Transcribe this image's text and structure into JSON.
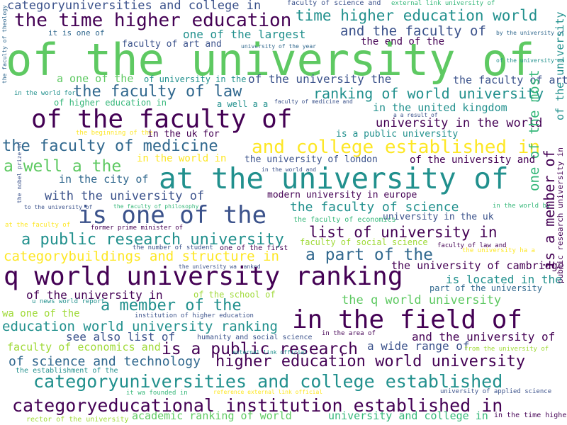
{
  "palette": {
    "dark_purple": "#440154",
    "indigo": "#3b528b",
    "blue": "#31688e",
    "teal": "#21908d",
    "green_teal": "#35b779",
    "green": "#5ec962",
    "yellow_green": "#a0da39",
    "yellow": "#fde725"
  },
  "words": [
    {
      "t": "categoryuniversities and college in",
      "c": "#3b528b"
    },
    {
      "t": "faculty of science and",
      "c": "#3b528b"
    },
    {
      "t": "external link university of",
      "c": "#35b779"
    },
    {
      "t": "the time higher education",
      "c": "#440154"
    },
    {
      "t": "time higher education world",
      "c": "#21908d"
    },
    {
      "t": "it is one of",
      "c": "#31688e"
    },
    {
      "t": "one of the largest",
      "c": "#21908d"
    },
    {
      "t": "and the faculty of",
      "c": "#3b528b"
    },
    {
      "t": "by the university of",
      "c": "#31688e"
    },
    {
      "t": "the faculty of theology",
      "c": "#31688e"
    },
    {
      "t": "faculty of art and",
      "c": "#3b528b"
    },
    {
      "t": "university of the year",
      "c": "#31688e"
    },
    {
      "t": "the end of the",
      "c": "#440154"
    },
    {
      "t": "of the university of",
      "c": "#5ec962"
    },
    {
      "t": "of the university wa",
      "c": "#21908d"
    },
    {
      "t": "a one of the",
      "c": "#5ec962"
    },
    {
      "t": "of university in the",
      "c": "#21908d"
    },
    {
      "t": "of the university the",
      "c": "#3b528b"
    },
    {
      "t": "the faculty of art",
      "c": "#3b528b"
    },
    {
      "t": "the faculty of law",
      "c": "#31688e"
    },
    {
      "t": "ranking of world university",
      "c": "#21908d"
    },
    {
      "t": "in the world for",
      "c": "#21908d"
    },
    {
      "t": "of higher education in",
      "c": "#35b779"
    },
    {
      "t": "a well a a",
      "c": "#21908d"
    },
    {
      "t": "faculty of medicine and",
      "c": "#3b528b"
    },
    {
      "t": "in the united kingdom",
      "c": "#21908d"
    },
    {
      "t": "of the university",
      "c": "#21908d"
    },
    {
      "t": "of the faculty of",
      "c": "#440154"
    },
    {
      "t": "a a result of",
      "c": "#3b528b"
    },
    {
      "t": "university in the world",
      "c": "#440154"
    },
    {
      "t": "the beginning of the",
      "c": "#fde725"
    },
    {
      "t": "in the uk for",
      "c": "#440154"
    },
    {
      "t": "is a public university",
      "c": "#21908d"
    },
    {
      "t": "the faculty of medicine",
      "c": "#31688e"
    },
    {
      "t": "and college established in",
      "c": "#fde725"
    },
    {
      "t": "one of the most",
      "c": "#35b779"
    },
    {
      "t": "in the world in",
      "c": "#fde725"
    },
    {
      "t": "the university of london",
      "c": "#3b528b"
    },
    {
      "t": "of the university and",
      "c": "#440154"
    },
    {
      "t": "a well a the",
      "c": "#5ec962"
    },
    {
      "t": "at the university of",
      "c": "#21908d"
    },
    {
      "t": "in the world and",
      "c": "#3b528b"
    },
    {
      "t": "in the city of",
      "c": "#31688e"
    },
    {
      "t": "the nobel prize in",
      "c": "#3b528b"
    },
    {
      "t": "with the university of",
      "c": "#3b528b"
    },
    {
      "t": "modern university in europe",
      "c": "#440154"
    },
    {
      "t": "to the university of",
      "c": "#3b528b"
    },
    {
      "t": "the faculty of philosophy",
      "c": "#35b779"
    },
    {
      "t": "the faculty of science",
      "c": "#21908d"
    },
    {
      "t": "in the world by",
      "c": "#35b779"
    },
    {
      "t": "is one of the",
      "c": "#3b528b"
    },
    {
      "t": "university in the uk",
      "c": "#3b528b"
    },
    {
      "t": "the faculty of economics",
      "c": "#35b779"
    },
    {
      "t": "at the faculty of",
      "c": "#fde725"
    },
    {
      "t": "former prime minister of",
      "c": "#440154"
    },
    {
      "t": "list of university in",
      "c": "#440154"
    },
    {
      "t": "a public research university",
      "c": "#21908d"
    },
    {
      "t": "faculty of social science",
      "c": "#a0da39"
    },
    {
      "t": "faculty of law and",
      "c": "#440154"
    },
    {
      "t": "the number of student",
      "c": "#3b528b"
    },
    {
      "t": "one of the first",
      "c": "#440154"
    },
    {
      "t": "the university ha a",
      "c": "#fde725"
    },
    {
      "t": "categorybuildings and structure in",
      "c": "#fde725"
    },
    {
      "t": "a part of the",
      "c": "#31688e"
    },
    {
      "t": "public research university in",
      "c": "#440154"
    },
    {
      "t": "the university wa ranked",
      "c": "#3b528b"
    },
    {
      "t": "the university of cambridge",
      "c": "#440154"
    },
    {
      "t": "q world university ranking",
      "c": "#440154"
    },
    {
      "t": "is located in the",
      "c": "#21908d"
    },
    {
      "t": "is a member of",
      "c": "#440154"
    },
    {
      "t": "part of the university",
      "c": "#31688e"
    },
    {
      "t": "of the university in",
      "c": "#440154"
    },
    {
      "t": "of the school of",
      "c": "#a0da39"
    },
    {
      "t": "u news world report",
      "c": "#21908d"
    },
    {
      "t": "a member of the",
      "c": "#21908d"
    },
    {
      "t": "the q world university",
      "c": "#5ec962"
    },
    {
      "t": "wa one of the",
      "c": "#a0da39"
    },
    {
      "t": "institution of higher education",
      "c": "#3b528b"
    },
    {
      "t": "in the field of",
      "c": "#440154"
    },
    {
      "t": "education world university ranking",
      "c": "#21908d"
    },
    {
      "t": "in the area of",
      "c": "#440154"
    },
    {
      "t": "see also list of",
      "c": "#3b528b"
    },
    {
      "t": "humanity and social science",
      "c": "#3b528b"
    },
    {
      "t": "and the university of",
      "c": "#440154"
    },
    {
      "t": "faculty of economics and",
      "c": "#a0da39"
    },
    {
      "t": "is a public research",
      "c": "#440154"
    },
    {
      "t": "external link official",
      "c": "#21908d"
    },
    {
      "t": "a wide range of",
      "c": "#3b528b"
    },
    {
      "t": "from the university of",
      "c": "#a0da39"
    },
    {
      "t": "of science and technology",
      "c": "#31688e"
    },
    {
      "t": "higher education world university",
      "c": "#440154"
    },
    {
      "t": "the establishment of the",
      "c": "#21908d"
    },
    {
      "t": "categoryuniversities and college established",
      "c": "#21908d"
    },
    {
      "t": "it wa founded in",
      "c": "#35b779"
    },
    {
      "t": "reference external link official",
      "c": "#fde725"
    },
    {
      "t": "university of applied science",
      "c": "#3b528b"
    },
    {
      "t": "categoryeducational institution established in",
      "c": "#440154"
    },
    {
      "t": "rector of the university",
      "c": "#a0da39"
    },
    {
      "t": "academic ranking of world",
      "c": "#5ec962"
    },
    {
      "t": "university and college in",
      "c": "#35b779"
    },
    {
      "t": "in the time higher",
      "c": "#440154"
    }
  ]
}
